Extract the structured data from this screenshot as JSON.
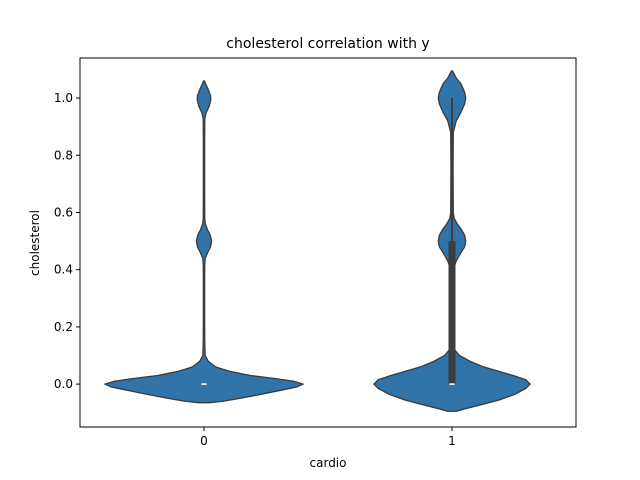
{
  "chart_data": {
    "type": "violin",
    "title": "cholesterol correlation with y",
    "xlabel": "cardio",
    "ylabel": "cholesterol",
    "categories": [
      "0",
      "1"
    ],
    "ylim": [
      -0.15,
      1.14
    ],
    "yticks": [
      0.0,
      0.2,
      0.4,
      0.6,
      0.8,
      1.0
    ],
    "ytick_labels": [
      "0.0",
      "0.2",
      "0.4",
      "0.6",
      "0.8",
      "1.0"
    ],
    "fill_color": "#2f73a8",
    "edge_color": "#3a3a3a",
    "violins": [
      {
        "category": "0",
        "median": 0.0,
        "q1": 0.0,
        "q3": 0.0,
        "whisker_low": 0.0,
        "whisker_high": 0.0,
        "density": [
          [
            -0.065,
            0.05
          ],
          [
            -0.06,
            0.18
          ],
          [
            -0.05,
            0.34
          ],
          [
            -0.035,
            0.55
          ],
          [
            -0.02,
            0.75
          ],
          [
            -0.01,
            0.88
          ],
          [
            0.0,
            0.94
          ],
          [
            0.01,
            0.85
          ],
          [
            0.02,
            0.66
          ],
          [
            0.03,
            0.44
          ],
          [
            0.045,
            0.24
          ],
          [
            0.06,
            0.11
          ],
          [
            0.08,
            0.04
          ],
          [
            0.1,
            0.011
          ],
          [
            0.15,
            0.007
          ],
          [
            0.25,
            0.006
          ],
          [
            0.35,
            0.006
          ],
          [
            0.42,
            0.007
          ],
          [
            0.44,
            0.012
          ],
          [
            0.46,
            0.035
          ],
          [
            0.48,
            0.062
          ],
          [
            0.5,
            0.072
          ],
          [
            0.52,
            0.06
          ],
          [
            0.54,
            0.033
          ],
          [
            0.56,
            0.013
          ],
          [
            0.58,
            0.007
          ],
          [
            0.7,
            0.006
          ],
          [
            0.85,
            0.006
          ],
          [
            0.93,
            0.008
          ],
          [
            0.95,
            0.022
          ],
          [
            0.97,
            0.048
          ],
          [
            0.99,
            0.062
          ],
          [
            1.0,
            0.064
          ],
          [
            1.01,
            0.06
          ],
          [
            1.03,
            0.04
          ],
          [
            1.05,
            0.015
          ],
          [
            1.06,
            0.004
          ]
        ]
      },
      {
        "category": "1",
        "median": 0.0,
        "q1": 0.0,
        "q3": 0.5,
        "whisker_low": 0.0,
        "whisker_high": 1.0,
        "density": [
          [
            -0.095,
            0.04
          ],
          [
            -0.085,
            0.14
          ],
          [
            -0.07,
            0.3
          ],
          [
            -0.055,
            0.45
          ],
          [
            -0.035,
            0.6
          ],
          [
            -0.015,
            0.7
          ],
          [
            0.0,
            0.74
          ],
          [
            0.015,
            0.7
          ],
          [
            0.03,
            0.58
          ],
          [
            0.045,
            0.44
          ],
          [
            0.06,
            0.3
          ],
          [
            0.08,
            0.17
          ],
          [
            0.1,
            0.07
          ],
          [
            0.12,
            0.025
          ],
          [
            0.15,
            0.012
          ],
          [
            0.25,
            0.01
          ],
          [
            0.35,
            0.01
          ],
          [
            0.4,
            0.012
          ],
          [
            0.43,
            0.04
          ],
          [
            0.46,
            0.085
          ],
          [
            0.48,
            0.12
          ],
          [
            0.5,
            0.13
          ],
          [
            0.52,
            0.12
          ],
          [
            0.54,
            0.09
          ],
          [
            0.56,
            0.05
          ],
          [
            0.58,
            0.02
          ],
          [
            0.6,
            0.012
          ],
          [
            0.75,
            0.01
          ],
          [
            0.88,
            0.012
          ],
          [
            0.92,
            0.04
          ],
          [
            0.95,
            0.085
          ],
          [
            0.98,
            0.12
          ],
          [
            1.0,
            0.13
          ],
          [
            1.02,
            0.12
          ],
          [
            1.05,
            0.085
          ],
          [
            1.07,
            0.04
          ],
          [
            1.09,
            0.012
          ],
          [
            1.095,
            0.004
          ]
        ]
      }
    ]
  }
}
